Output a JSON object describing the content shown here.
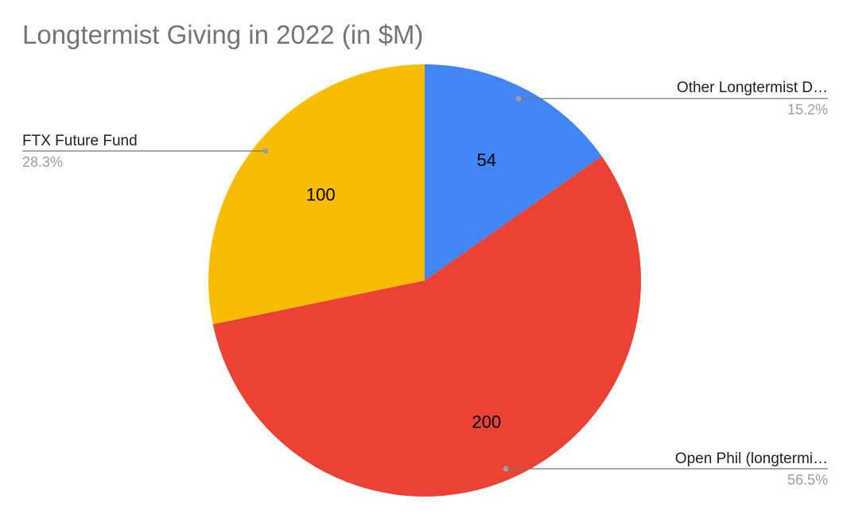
{
  "chart_data": {
    "type": "pie",
    "title": "Longtermist Giving in 2022 (in $M)",
    "slices": [
      {
        "label": "Other Longtermist D…",
        "value": 54,
        "percent": "15.2%",
        "color": "#4285F4"
      },
      {
        "label": "Open Phil (longtermi…",
        "value": 200,
        "percent": "56.5%",
        "color": "#EA4335"
      },
      {
        "label": "FTX Future Fund",
        "value": 100,
        "percent": "28.3%",
        "color": "#FBBC04"
      }
    ],
    "start_angle": 0,
    "direction": "clockwise",
    "legend": "none",
    "labels": "callouts"
  }
}
